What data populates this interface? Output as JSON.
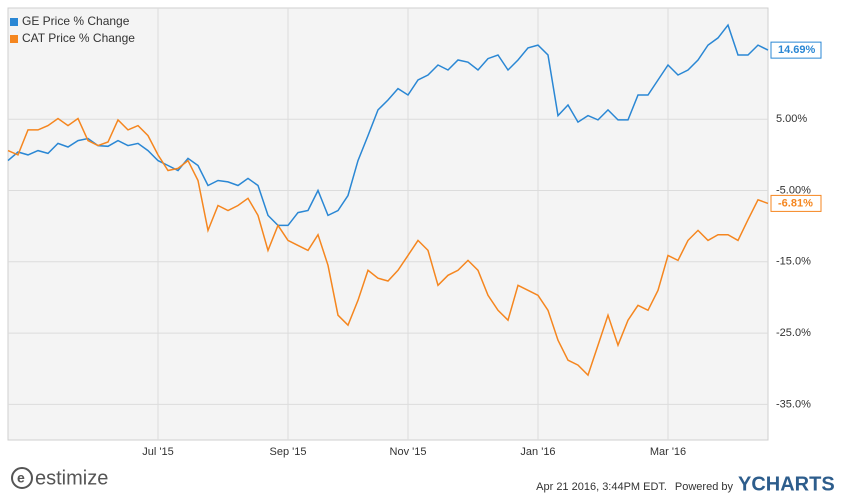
{
  "chart_data": {
    "type": "line",
    "categories": [
      null,
      null,
      null,
      null,
      null,
      null,
      null,
      null,
      null,
      null,
      null,
      null,
      null,
      null,
      null,
      "Jul '15",
      null,
      null,
      null,
      null,
      null,
      null,
      null,
      null,
      null,
      null,
      null,
      null,
      "Sep '15",
      null,
      null,
      null,
      null,
      null,
      null,
      null,
      null,
      null,
      null,
      null,
      "Nov '15",
      null,
      null,
      null,
      null,
      null,
      null,
      null,
      null,
      null,
      null,
      null,
      null,
      "Jan '16",
      null,
      null,
      null,
      null,
      null,
      null,
      null,
      null,
      null,
      null,
      null,
      null,
      "Mar '16",
      null,
      null,
      null,
      null,
      null,
      null,
      null,
      null,
      null,
      null
    ],
    "series": [
      {
        "name": "GE Price % Change",
        "color": "#2a87d4",
        "values": [
          -0.8,
          0.4,
          0,
          0.6,
          0.2,
          1.6,
          1.1,
          2,
          2.3,
          1.3,
          1.2,
          2,
          1.3,
          1.6,
          0.6,
          -0.8,
          -1.5,
          -2.2,
          -0.5,
          -1.5,
          -4.3,
          -3.6,
          -3.8,
          -4.3,
          -3.3,
          -4.3,
          -8.5,
          -9.9,
          -9.9,
          -8.1,
          -7.8,
          -5,
          -8.5,
          -7.8,
          -5.7,
          -0.8,
          2.7,
          6.3,
          7.7,
          9.3,
          8.4,
          10.5,
          11.2,
          12.6,
          11.9,
          13.3,
          13,
          11.9,
          13.5,
          14,
          11.9,
          13.3,
          15,
          15.4,
          14,
          5.5,
          7,
          4.6,
          5.5,
          4.9,
          6.3,
          4.9,
          4.9,
          8.4,
          8.4,
          10.5,
          12.6,
          11.2,
          11.9,
          13.3,
          15.4,
          16.4,
          18.2,
          14,
          14,
          15.4,
          14.69
        ],
        "value_labels": [
          null,
          null,
          null,
          null,
          null,
          null,
          null,
          null,
          null,
          null,
          null,
          null,
          null,
          null,
          null,
          null,
          null,
          null,
          null,
          null,
          null,
          null,
          null,
          null,
          null,
          null,
          null,
          null,
          null,
          null,
          null,
          null,
          null,
          null,
          null,
          null,
          null,
          null,
          null,
          null,
          null,
          null,
          null,
          null,
          null,
          null,
          null,
          null,
          null,
          null,
          null,
          null,
          null,
          null,
          null,
          null,
          null,
          null,
          null,
          null,
          null,
          null,
          null,
          null,
          null,
          null,
          null,
          null,
          null,
          null,
          null,
          null,
          null,
          null,
          null,
          null,
          "14.69%"
        ]
      },
      {
        "name": "CAT Price % Change",
        "color": "#f5861f",
        "values": [
          0.6,
          0,
          3.5,
          3.5,
          4.1,
          5.1,
          4.1,
          5.1,
          2,
          1.3,
          1.8,
          4.9,
          3.5,
          4.1,
          2.7,
          0,
          -2.2,
          -1.9,
          -0.8,
          -3.6,
          -10.6,
          -7.1,
          -7.8,
          -7.1,
          -6.1,
          -8.5,
          -13.4,
          -9.9,
          -12,
          -12.7,
          -13.4,
          -11.2,
          -15.5,
          -22.5,
          -23.9,
          -20.4,
          -16.2,
          -17.3,
          -17.7,
          -16.2,
          -14.1,
          -12,
          -13.4,
          -18.3,
          -16.9,
          -16.2,
          -14.8,
          -16.2,
          -19.7,
          -21.8,
          -23.2,
          -18.3,
          -19,
          -19.7,
          -21.8,
          -26,
          -28.8,
          -29.5,
          -30.9,
          -26.7,
          -22.5,
          -26.7,
          -23.2,
          -21.1,
          -21.8,
          -19,
          -14.1,
          -14.8,
          -12,
          -10.6,
          -12,
          -11.2,
          -11.2,
          -12,
          -9.1,
          -6.3,
          -6.81
        ],
        "value_labels": [
          null,
          null,
          null,
          null,
          null,
          null,
          null,
          null,
          null,
          null,
          null,
          null,
          null,
          null,
          null,
          null,
          null,
          null,
          null,
          null,
          null,
          null,
          null,
          null,
          null,
          null,
          null,
          null,
          null,
          null,
          null,
          null,
          null,
          null,
          null,
          null,
          null,
          null,
          null,
          null,
          null,
          null,
          null,
          null,
          null,
          null,
          null,
          null,
          null,
          null,
          null,
          null,
          null,
          null,
          null,
          null,
          null,
          null,
          null,
          null,
          null,
          null,
          null,
          null,
          null,
          null,
          null,
          null,
          null,
          null,
          null,
          null,
          null,
          null,
          null,
          null,
          "-6.81%"
        ]
      }
    ],
    "ylim": [
      -40,
      20.6
    ],
    "yticks": [
      {
        "value": 5,
        "label": "5.00%"
      },
      {
        "value": -5,
        "label": "-5.00%"
      },
      {
        "value": -15,
        "label": "-15.0%"
      },
      {
        "value": -25,
        "label": "-25.0%"
      },
      {
        "value": -35,
        "label": "-35.0%"
      }
    ],
    "grid": true,
    "legend": "top-left"
  },
  "footer": {
    "brand": "estimize",
    "timestamp": "Apr 21 2016, 3:44PM EDT.",
    "powered": "Powered by",
    "provider": "YCHARTS"
  }
}
